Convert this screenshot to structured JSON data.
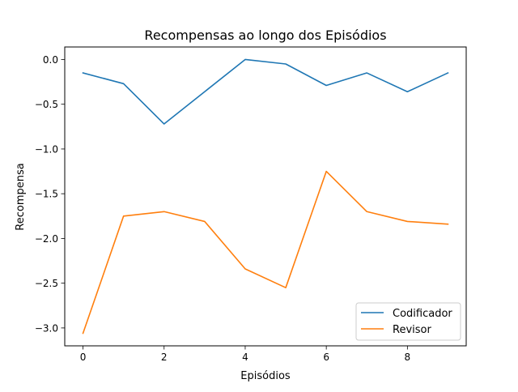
{
  "chart_data": {
    "type": "line",
    "title": "Recompensas ao longo dos Episódios",
    "xlabel": "Episódios",
    "ylabel": "Recompensa",
    "x": [
      0,
      1,
      2,
      3,
      4,
      5,
      6,
      7,
      8,
      9
    ],
    "xlim": [
      -0.45,
      9.45
    ],
    "ylim": [
      -3.2,
      0.14
    ],
    "xticks": [
      0,
      2,
      4,
      6,
      8
    ],
    "yticks": [
      0.0,
      -0.5,
      -1.0,
      -1.5,
      -2.0,
      -2.5,
      -3.0
    ],
    "xtick_labels": [
      "0",
      "2",
      "4",
      "6",
      "8"
    ],
    "ytick_labels": [
      "0.0",
      "−0.5",
      "−1.0",
      "−1.5",
      "−2.0",
      "−2.5",
      "−3.0"
    ],
    "grid": false,
    "legend_position": "bottom-right",
    "series": [
      {
        "name": "Codificador",
        "color": "#1f77b4",
        "values": [
          -0.15,
          -0.27,
          -0.72,
          -0.36,
          0.0,
          -0.05,
          -0.29,
          -0.15,
          -0.36,
          -0.15
        ]
      },
      {
        "name": "Revisor",
        "color": "#ff7f0e",
        "values": [
          -3.06,
          -1.75,
          -1.7,
          -1.81,
          -2.34,
          -2.55,
          -1.25,
          -1.7,
          -1.81,
          -1.84
        ]
      }
    ]
  }
}
